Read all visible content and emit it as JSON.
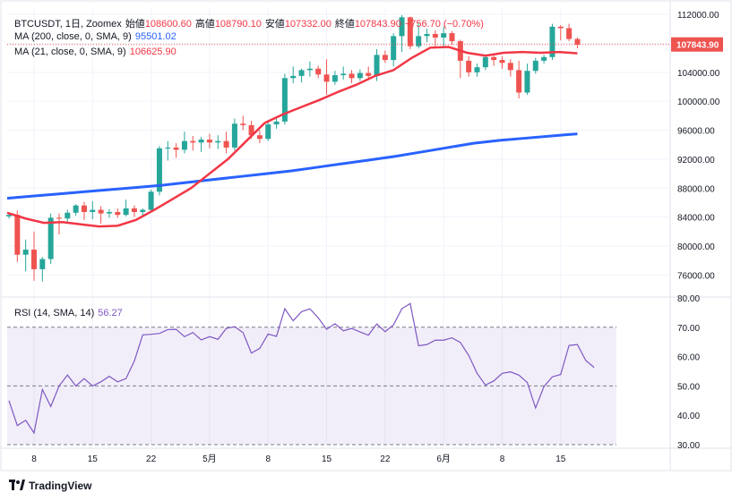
{
  "header": {
    "symbol": "BTCUSDT, 1日, Zoomex",
    "open_label": "始値",
    "open": "108600.60",
    "high_label": "高値",
    "high": "108790.10",
    "low_label": "安値",
    "low": "107332.00",
    "close_label": "終値",
    "close": "107843.90",
    "change": "−756.70 (−0.70%)"
  },
  "ma200": {
    "label": "MA (200, close, 0, SMA, 9)",
    "value": "95501.02",
    "color": "#2962ff"
  },
  "ma21": {
    "label": "MA (21, close, 0, SMA, 9)",
    "value": "106625.90",
    "color": "#f23645"
  },
  "price_tag": "107843.90",
  "rsi": {
    "label": "RSI (14, SMA, 14)",
    "value": "56.27",
    "color": "#7e57c2"
  },
  "footer": {
    "brand": "TradingView"
  },
  "colors": {
    "up": "#26a69a",
    "down": "#ef5350",
    "grid": "#f0f3fa",
    "band": "#7e57c2"
  },
  "chart_data": {
    "type": "candlestick",
    "x_ticks": [
      "8",
      "15",
      "22",
      "5月",
      "8",
      "15",
      "22",
      "6月",
      "8",
      "15"
    ],
    "y_ticks": [
      "112000.00",
      "108000.00",
      "104000.00",
      "100000.00",
      "96000.00",
      "92000.00",
      "88000.00",
      "84000.00",
      "80000.00",
      "76000.00"
    ],
    "ylim": [
      73200,
      113000
    ],
    "candles": [
      [
        84100,
        84500,
        83800,
        84300
      ],
      [
        84300,
        84900,
        77800,
        78800
      ],
      [
        78800,
        80900,
        76500,
        79500
      ],
      [
        79500,
        82000,
        75200,
        76800
      ],
      [
        76800,
        78500,
        75100,
        78200
      ],
      [
        78200,
        84500,
        77500,
        83900
      ],
      [
        83900,
        84500,
        81600,
        83800
      ],
      [
        83800,
        85000,
        83100,
        84600
      ],
      [
        84600,
        85800,
        84200,
        85600
      ],
      [
        85600,
        86100,
        83600,
        84700
      ],
      [
        84700,
        86200,
        83700,
        85000
      ],
      [
        85000,
        85500,
        83100,
        84500
      ],
      [
        84500,
        85100,
        83900,
        84700
      ],
      [
        84700,
        85200,
        83900,
        84300
      ],
      [
        84300,
        86400,
        84100,
        85200
      ],
      [
        85200,
        85600,
        84000,
        84700
      ],
      [
        84700,
        85200,
        84100,
        85000
      ],
      [
        85000,
        87800,
        84800,
        87500
      ],
      [
        87500,
        93800,
        87000,
        93500
      ],
      [
        93500,
        94500,
        91800,
        93600
      ],
      [
        93600,
        94200,
        92200,
        93300
      ],
      [
        93300,
        95800,
        92800,
        94500
      ],
      [
        94500,
        95200,
        93200,
        94300
      ],
      [
        94300,
        95100,
        93000,
        94700
      ],
      [
        94700,
        95500,
        93500,
        94300
      ],
      [
        94300,
        95300,
        93400,
        94500
      ],
      [
        94500,
        95800,
        92800,
        93600
      ],
      [
        93600,
        97600,
        93200,
        96900
      ],
      [
        96900,
        98000,
        96000,
        96700
      ],
      [
        96700,
        97300,
        94800,
        95300
      ],
      [
        95300,
        96000,
        94200,
        94800
      ],
      [
        94800,
        97200,
        94500,
        96800
      ],
      [
        96800,
        97600,
        96200,
        97200
      ],
      [
        97200,
        103800,
        96800,
        103200
      ],
      [
        103200,
        104800,
        102500,
        103500
      ],
      [
        103500,
        104500,
        102600,
        104300
      ],
      [
        104300,
        105500,
        103400,
        104500
      ],
      [
        104500,
        104900,
        103200,
        103700
      ],
      [
        103700,
        105800,
        100900,
        102700
      ],
      [
        102700,
        104200,
        102300,
        103600
      ],
      [
        103600,
        104800,
        103000,
        103800
      ],
      [
        103800,
        104300,
        102500,
        103200
      ],
      [
        103200,
        104400,
        102800,
        103900
      ],
      [
        103900,
        104800,
        102900,
        103500
      ],
      [
        103500,
        107200,
        102800,
        106400
      ],
      [
        106400,
        107000,
        105300,
        105700
      ],
      [
        105700,
        109400,
        104800,
        109000
      ],
      [
        109000,
        111900,
        106800,
        111600
      ],
      [
        111600,
        111700,
        107200,
        107600
      ],
      [
        107600,
        110800,
        107300,
        109000
      ],
      [
        109000,
        110000,
        108200,
        109300
      ],
      [
        109300,
        109800,
        107500,
        108800
      ],
      [
        108800,
        110300,
        107600,
        109400
      ],
      [
        109400,
        109700,
        107800,
        108300
      ],
      [
        108300,
        108500,
        103200,
        105600
      ],
      [
        105600,
        106200,
        103400,
        104000
      ],
      [
        104000,
        105200,
        103400,
        104700
      ],
      [
        104700,
        106500,
        104300,
        106100
      ],
      [
        106100,
        106300,
        104900,
        105700
      ],
      [
        105700,
        106200,
        104500,
        105300
      ],
      [
        105300,
        105800,
        103400,
        104300
      ],
      [
        104300,
        105600,
        100400,
        101200
      ],
      [
        101200,
        105200,
        100900,
        104200
      ],
      [
        104200,
        106000,
        103800,
        105600
      ],
      [
        105600,
        106400,
        105200,
        106100
      ],
      [
        106100,
        110700,
        105700,
        110300
      ],
      [
        110300,
        110500,
        108400,
        110100
      ],
      [
        110100,
        110700,
        108300,
        108600
      ],
      [
        108600,
        108800,
        107300,
        107800
      ]
    ],
    "ma200_values": [
      86600,
      86900,
      87200,
      87500,
      87800,
      88100,
      88400,
      88800,
      89200,
      89600,
      90000,
      90400,
      90900,
      91400,
      91900,
      92400,
      93000,
      93600,
      94200,
      94600,
      94900,
      95200,
      95500
    ],
    "ma21_values": [
      84600,
      83800,
      83200,
      83300,
      83000,
      82700,
      82800,
      83600,
      85000,
      86500,
      88000,
      90000,
      92000,
      94500,
      97000,
      98200,
      99200,
      100200,
      101300,
      102300,
      103500,
      104300,
      106000,
      107400,
      107500,
      106700,
      106300,
      106700,
      106800,
      106700,
      106800,
      106625
    ],
    "rsi_values": [
      45,
      36.5,
      38.3,
      34,
      48.8,
      43,
      50,
      53.7,
      50,
      52.5,
      50,
      51.4,
      53.3,
      51.4,
      52.5,
      58.5,
      67.4,
      67.6,
      67.9,
      69.2,
      69.3,
      66.8,
      68.2,
      65.7,
      66.8,
      65.9,
      69.6,
      70.2,
      68.2,
      61.2,
      62.8,
      67.7,
      66.9,
      76.3,
      72.2,
      75.3,
      76.3,
      73.2,
      69.3,
      71.2,
      68.8,
      69.6,
      68.4,
      67.3,
      71.1,
      68.5,
      70.8,
      76.3,
      78.1,
      63.7,
      64.1,
      65.6,
      65.6,
      66.4,
      64.8,
      60.4,
      54.3,
      50.3,
      51.7,
      54.3,
      54.8,
      53.7,
      51.2,
      42.5,
      49.8,
      53.1,
      53.9,
      63.8,
      64.1,
      58.7,
      56.3
    ],
    "rsi_ylim": [
      30,
      80
    ],
    "rsi_ticks": [
      "80.00",
      "70.00",
      "60.00",
      "50.00",
      "40.00",
      "30.00"
    ],
    "rsi_bands": [
      70,
      50,
      30
    ]
  }
}
